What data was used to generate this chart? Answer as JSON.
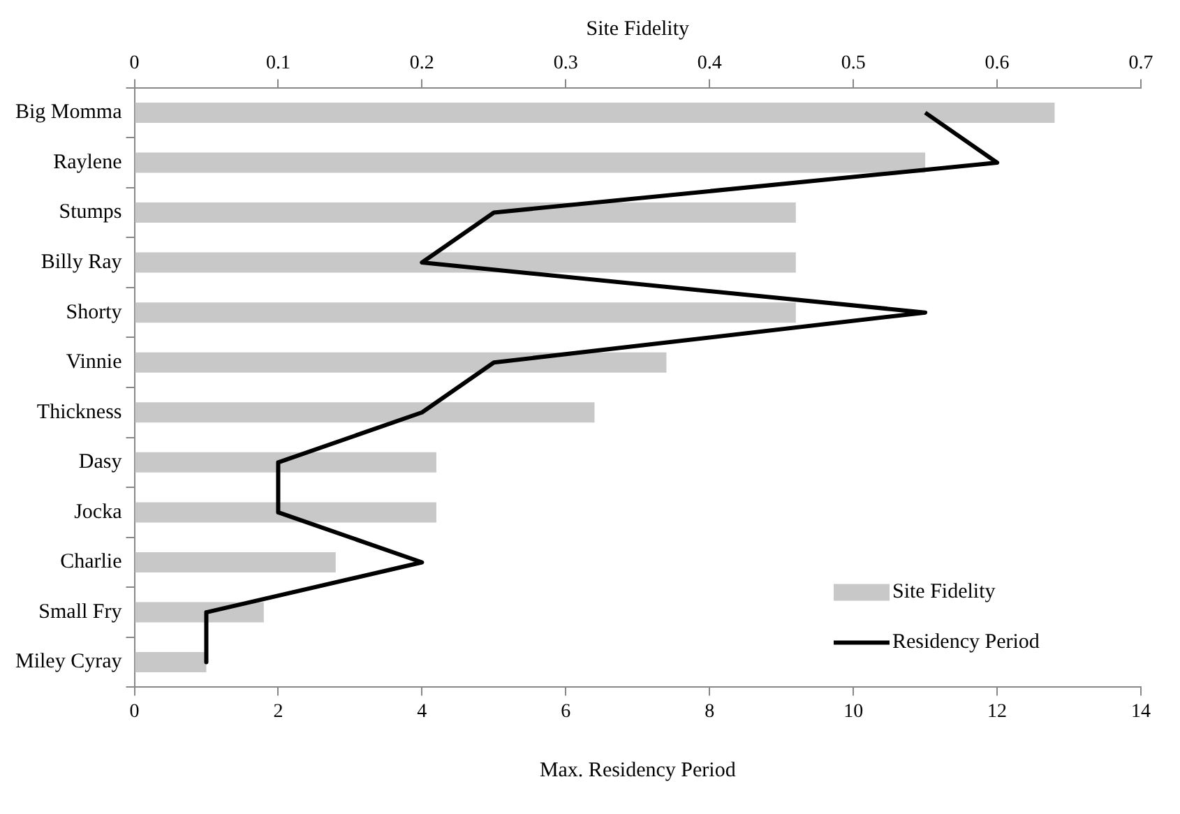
{
  "chart_data": {
    "type": "bar",
    "orientation": "horizontal",
    "x2label": "Site Fidelity",
    "xlabel": "Max. Residency Period",
    "categories": [
      "Big Momma",
      "Raylene",
      "Stumps",
      "Billy Ray",
      "Shorty",
      "Vinnie",
      "Thickness",
      "Dasy",
      "Jocka",
      "Charlie",
      "Small Fry",
      "Miley Cyray"
    ],
    "series": [
      {
        "name": "Site Fidelity",
        "color": "#c8c8c8",
        "axis": "x2",
        "values": [
          0.64,
          0.55,
          0.46,
          0.46,
          0.46,
          0.37,
          0.32,
          0.21,
          0.21,
          0.14,
          0.09,
          0.05
        ]
      },
      {
        "name": "Residency Period",
        "type": "line",
        "color": "#000000",
        "values": [
          11,
          12,
          5,
          4,
          11,
          5,
          4,
          2,
          2,
          4,
          1,
          1
        ]
      }
    ],
    "xlim": [
      0,
      14
    ],
    "xticks": [
      0,
      2,
      4,
      6,
      8,
      10,
      12,
      14
    ],
    "x2lim": [
      0,
      0.7
    ],
    "x2ticks": [
      0,
      0.1,
      0.2,
      0.3,
      0.4,
      0.5,
      0.6,
      0.7
    ],
    "grid": false,
    "legend": "bottom right",
    "marker": "none",
    "line_style": "solid"
  }
}
